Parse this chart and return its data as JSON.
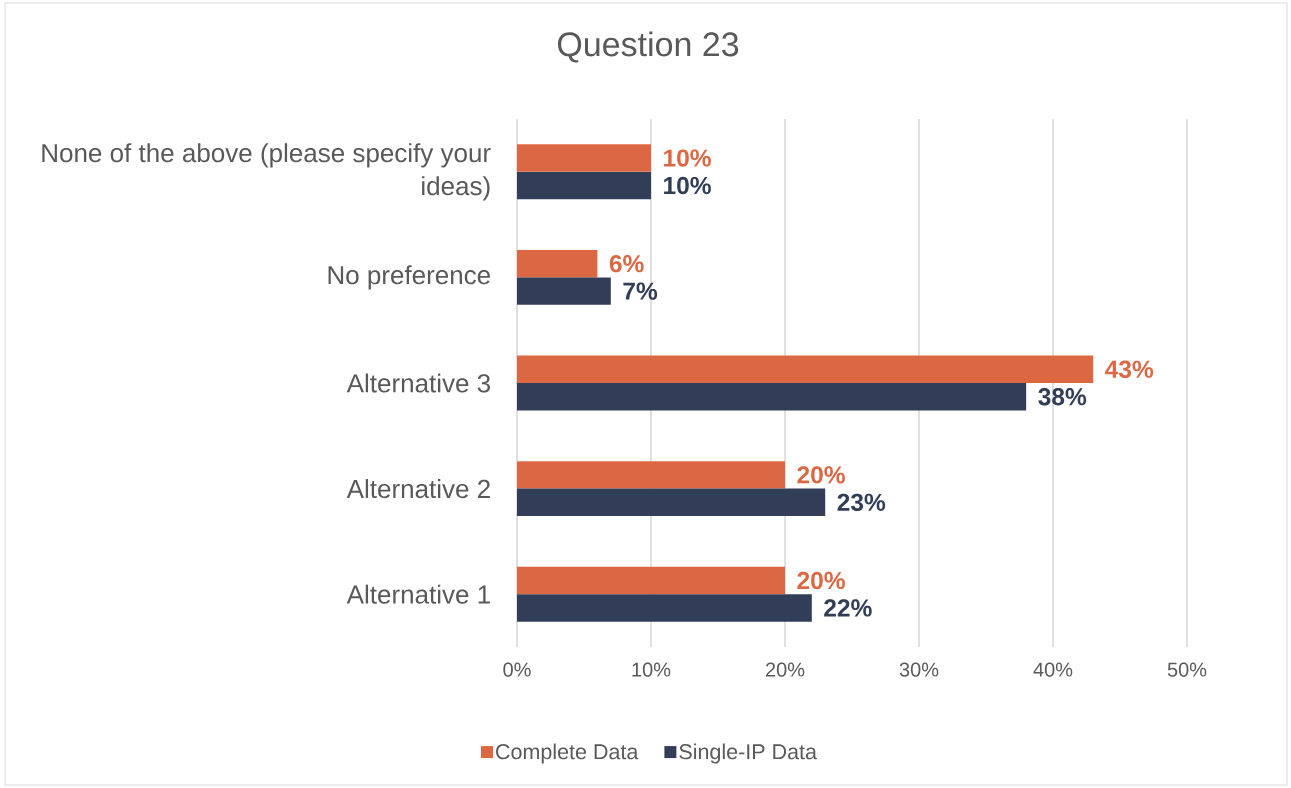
{
  "chart_data": {
    "type": "bar",
    "orientation": "horizontal",
    "title": "Question 23",
    "categories": [
      "None of the above (please specify your ideas)",
      "No preference",
      "Alternative 3",
      "Alternative 2",
      "Alternative 1"
    ],
    "series": [
      {
        "name": "Complete Data",
        "color": "#dc6843",
        "values": [
          10,
          6,
          43,
          20,
          20
        ],
        "value_labels": [
          "10%",
          "6%",
          "43%",
          "20%",
          "20%"
        ]
      },
      {
        "name": "Single-IP Data",
        "color": "#323e58",
        "values": [
          10,
          7,
          38,
          23,
          22
        ],
        "value_labels": [
          "10%",
          "7%",
          "38%",
          "23%",
          "22%"
        ]
      }
    ],
    "xlim": [
      0,
      50
    ],
    "xticks": [
      {
        "value": 0,
        "label": "0%"
      },
      {
        "value": 10,
        "label": "10%"
      },
      {
        "value": 20,
        "label": "20%"
      },
      {
        "value": 30,
        "label": "30%"
      },
      {
        "value": 40,
        "label": "40%"
      },
      {
        "value": 50,
        "label": "50%"
      }
    ],
    "grid": "x",
    "legend": "bottom"
  }
}
